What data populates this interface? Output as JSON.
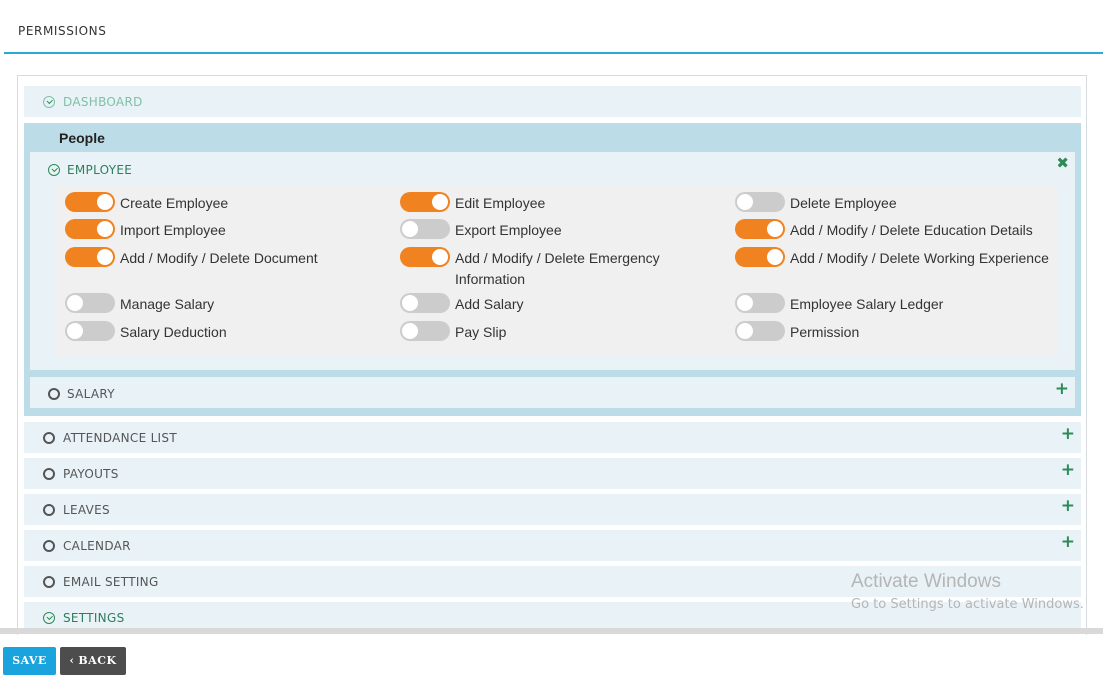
{
  "page": {
    "title": "PERMISSIONS"
  },
  "modules_top": {
    "dashboard": "DASHBOARD"
  },
  "people": {
    "title": "People",
    "employee": {
      "title": "EMPLOYEE",
      "close_icon": "close-icon",
      "permissions": [
        {
          "label": "Create Employee",
          "on": true
        },
        {
          "label": "Edit Employee",
          "on": true
        },
        {
          "label": "Delete Employee",
          "on": false
        },
        {
          "label": "Import Employee",
          "on": true
        },
        {
          "label": "Export Employee",
          "on": false
        },
        {
          "label": "Add / Modify / Delete Education Details",
          "on": true
        },
        {
          "label": "Add / Modify / Delete Document",
          "on": true
        },
        {
          "label": "Add / Modify / Delete Emergency Information",
          "on": true
        },
        {
          "label": "Add / Modify / Delete Working Experience",
          "on": true
        },
        {
          "label": "Manage Salary",
          "on": false
        },
        {
          "label": "Add Salary",
          "on": false
        },
        {
          "label": "Employee Salary Ledger",
          "on": false
        },
        {
          "label": "Salary Deduction",
          "on": false
        },
        {
          "label": "Pay Slip",
          "on": false
        },
        {
          "label": "Permission",
          "on": false
        }
      ]
    },
    "salary": {
      "title": "SALARY"
    }
  },
  "modules": [
    {
      "label": "ATTENDANCE LIST",
      "expand": true
    },
    {
      "label": "PAYOUTS",
      "expand": true
    },
    {
      "label": "LEAVES",
      "expand": true
    },
    {
      "label": "CALENDAR",
      "expand": true
    },
    {
      "label": "EMAIL SETTING",
      "expand": false
    },
    {
      "label": "SETTINGS",
      "expand": false
    }
  ],
  "icons": {
    "plus": "+",
    "close": "✖",
    "back_chevron": "‹"
  },
  "colors": {
    "toggle_on": "#f0821f",
    "toggle_off": "#cccccc",
    "accent": "#1aa3dc",
    "check_green": "#2e8b57"
  },
  "watermark": {
    "title": "Activate Windows",
    "subtitle": "Go to Settings to activate Windows."
  },
  "buttons": {
    "save": "SAVE",
    "back": "BACK"
  }
}
